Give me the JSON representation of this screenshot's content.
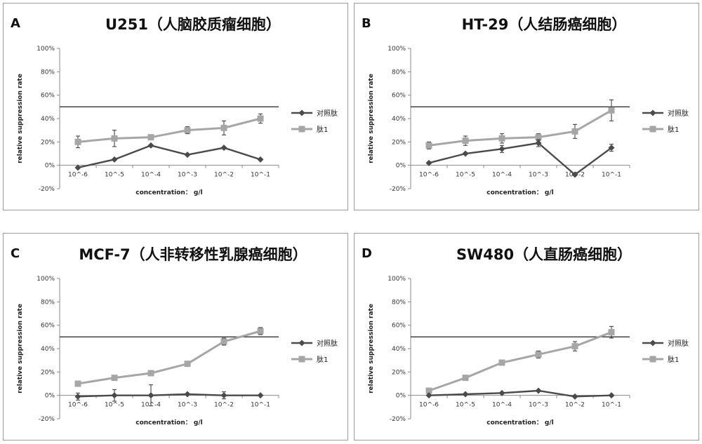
{
  "common": {
    "categories": [
      "10^-6",
      "10^-5",
      "10^-4",
      "10^-3",
      "10^-2",
      "10^-1"
    ],
    "y_ticks": [
      "100%",
      "80%",
      "60%",
      "40%",
      "20%",
      "0%",
      "-20%"
    ],
    "xlabel": "concentration： g/l",
    "ylabel": "relative suppression rate",
    "threshold": 50,
    "legend": [
      "对照肽",
      "肽1"
    ],
    "series_colors": [
      "#4a4a4a",
      "#a6a6a6"
    ]
  },
  "chart_data": [
    {
      "type": "line",
      "letter": "A",
      "title": "U251（人脑胶质瘤细胞）",
      "categories": [
        "10^-6",
        "10^-5",
        "10^-4",
        "10^-3",
        "10^-2",
        "10^-1"
      ],
      "xlabel": "concentration： g/l",
      "ylabel": "relative suppression rate",
      "ylim": [
        -20,
        100
      ],
      "series": [
        {
          "name": "对照肽",
          "values": [
            -2,
            5,
            17,
            9,
            15,
            5
          ],
          "errors": [
            0,
            0,
            0,
            0,
            0,
            0
          ]
        },
        {
          "name": "肽1",
          "values": [
            20,
            23,
            24,
            30,
            32,
            40
          ],
          "errors": [
            5,
            7,
            2,
            3,
            6,
            4
          ]
        }
      ]
    },
    {
      "type": "line",
      "letter": "B",
      "title": "HT-29（人结肠癌细胞）",
      "categories": [
        "10^-6",
        "10^-5",
        "10^-4",
        "10^-3",
        "10^-2",
        "10^-1"
      ],
      "xlabel": "concentration： g/l",
      "ylabel": "relative suppression rate",
      "ylim": [
        -20,
        100
      ],
      "series": [
        {
          "name": "对照肽",
          "values": [
            2,
            10,
            14,
            19,
            -8,
            15
          ],
          "errors": [
            0,
            0,
            3,
            3,
            0,
            3
          ]
        },
        {
          "name": "肽1",
          "values": [
            17,
            21,
            23,
            24,
            29,
            47
          ],
          "errors": [
            3,
            4,
            4,
            3,
            6,
            9
          ]
        }
      ]
    },
    {
      "type": "line",
      "letter": "C",
      "title": "MCF-7（人非转移性乳腺癌细胞）",
      "categories": [
        "10^-6",
        "10^-5",
        "10^-4",
        "10^-3",
        "10^-2",
        "10^-1"
      ],
      "xlabel": "concentration： g/l",
      "ylabel": "relative suppression rate",
      "ylim": [
        -20,
        100
      ],
      "series": [
        {
          "name": "对照肽",
          "values": [
            -1,
            0,
            0,
            1,
            0,
            0
          ],
          "errors": [
            3,
            5,
            9,
            0,
            3,
            0
          ]
        },
        {
          "name": "肽1",
          "values": [
            10,
            15,
            19,
            27,
            46,
            55
          ],
          "errors": [
            0,
            0,
            2,
            1,
            3,
            3
          ]
        }
      ]
    },
    {
      "type": "line",
      "letter": "D",
      "title": "SW480（人直肠癌细胞）",
      "categories": [
        "10^-6",
        "10^-5",
        "10^-4",
        "10^-3",
        "10^-2",
        "10^-1"
      ],
      "xlabel": "concentration： g/l",
      "ylabel": "relative suppression rate",
      "ylim": [
        -20,
        100
      ],
      "series": [
        {
          "name": "对照肽",
          "values": [
            0,
            1,
            2,
            4,
            -1,
            0
          ],
          "errors": [
            0,
            0,
            0,
            0,
            0,
            0
          ]
        },
        {
          "name": "肽1",
          "values": [
            4,
            15,
            28,
            35,
            42,
            54
          ],
          "errors": [
            2,
            2,
            2,
            3,
            4,
            5
          ]
        }
      ]
    }
  ]
}
